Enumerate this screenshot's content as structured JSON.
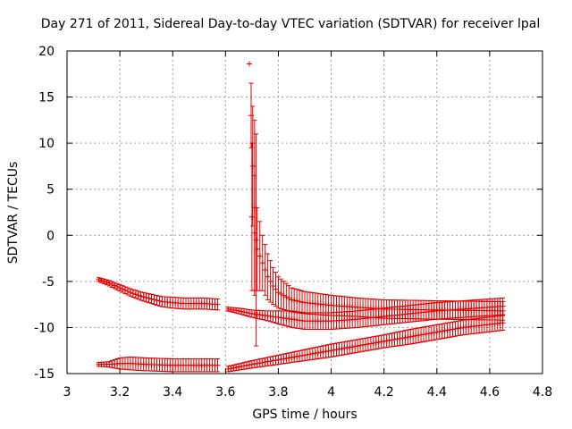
{
  "chart_data": {
    "type": "scatter",
    "title": "Day 271 of 2011, Sidereal Day-to-day VTEC variation (SDTVAR) for receiver lpal",
    "xlabel": "GPS time / hours",
    "ylabel": "SDTVAR / TECUs",
    "xlim": [
      3,
      4.8
    ],
    "ylim": [
      -15,
      20
    ],
    "xticks": [
      "3",
      "3.2",
      "3.4",
      "3.6",
      "3.8",
      "4",
      "4.2",
      "4.4",
      "4.6",
      "4.8"
    ],
    "yticks": [
      "-15",
      "-10",
      "-5",
      "0",
      "5",
      "10",
      "15",
      "20"
    ],
    "xtick_values": [
      3,
      3.2,
      3.4,
      3.6,
      3.8,
      4,
      4.2,
      4.4,
      4.6,
      4.8
    ],
    "ytick_values": [
      -15,
      -10,
      -5,
      0,
      5,
      10,
      15,
      20
    ],
    "grid": true,
    "color": "#e00000",
    "series": [
      {
        "name": "upper-left arc",
        "x_start": 3.12,
        "x_end": 3.57,
        "step": 0.01,
        "x": [
          3.12,
          3.16,
          3.2,
          3.24,
          3.28,
          3.32,
          3.36,
          3.4,
          3.44,
          3.48,
          3.52,
          3.57
        ],
        "y": [
          -4.8,
          -5.2,
          -5.7,
          -6.2,
          -6.6,
          -6.9,
          -7.2,
          -7.3,
          -7.4,
          -7.4,
          -7.4,
          -7.5
        ],
        "err": [
          0.2,
          0.3,
          0.35,
          0.4,
          0.45,
          0.5,
          0.55,
          0.6,
          0.6,
          0.6,
          0.6,
          0.6
        ]
      },
      {
        "name": "lower-left band",
        "x_start": 3.12,
        "x_end": 3.57,
        "step": 0.01,
        "x": [
          3.12,
          3.16,
          3.2,
          3.24,
          3.3,
          3.4,
          3.5,
          3.57
        ],
        "y": [
          -14.0,
          -14.0,
          -13.9,
          -13.9,
          -14.0,
          -14.1,
          -14.1,
          -14.1
        ],
        "err": [
          0.2,
          0.3,
          0.6,
          0.7,
          0.7,
          0.7,
          0.7,
          0.7
        ]
      },
      {
        "name": "upper-right track",
        "x_start": 3.61,
        "x_end": 4.65,
        "step": 0.01,
        "x": [
          3.61,
          3.65,
          3.7,
          3.75,
          3.8,
          3.85,
          3.9,
          4.0,
          4.1,
          4.2,
          4.3,
          4.4,
          4.5,
          4.65
        ],
        "y": [
          -8.0,
          -8.2,
          -8.5,
          -8.7,
          -8.9,
          -9.1,
          -9.3,
          -9.3,
          -9.1,
          -8.8,
          -8.5,
          -8.2,
          -8.0,
          -7.7
        ],
        "err": [
          0.2,
          0.3,
          0.4,
          0.5,
          0.7,
          0.9,
          0.9,
          0.9,
          0.9,
          0.9,
          0.9,
          0.9,
          0.9,
          0.9
        ]
      },
      {
        "name": "recovery arc",
        "x_start": 3.7,
        "x_end": 4.65,
        "step": 0.01,
        "x": [
          3.7,
          3.72,
          3.74,
          3.76,
          3.78,
          3.8,
          3.85,
          3.9,
          4.0,
          4.1,
          4.2,
          4.4,
          4.65
        ],
        "y": [
          2.0,
          -1.5,
          -3.0,
          -4.5,
          -5.5,
          -6.2,
          -7.0,
          -7.3,
          -7.6,
          -7.8,
          -8.0,
          -8.1,
          -8.2
        ],
        "err": [
          8.0,
          4.5,
          3.0,
          2.5,
          2.0,
          1.7,
          1.3,
          1.2,
          1.1,
          1.0,
          1.0,
          1.0,
          1.0
        ]
      },
      {
        "name": "lower-right rising",
        "x_start": 3.61,
        "x_end": 4.65,
        "step": 0.01,
        "x": [
          3.61,
          3.7,
          3.8,
          3.9,
          4.0,
          4.1,
          4.2,
          4.3,
          4.4,
          4.5,
          4.65
        ],
        "y": [
          -14.5,
          -14.0,
          -13.5,
          -13.0,
          -12.5,
          -12.0,
          -11.5,
          -11.0,
          -10.5,
          -10.0,
          -9.5
        ],
        "err": [
          0.3,
          0.4,
          0.5,
          0.6,
          0.7,
          0.7,
          0.7,
          0.8,
          0.8,
          0.8,
          0.8
        ]
      },
      {
        "name": "spike points",
        "x": [
          3.69,
          3.697,
          3.703,
          3.71,
          3.716
        ],
        "y": [
          18.6,
          13.0,
          7.5,
          3.0,
          -0.5
        ],
        "err": [
          0.0,
          3.5,
          6.5,
          9.5,
          11.5
        ]
      }
    ]
  }
}
